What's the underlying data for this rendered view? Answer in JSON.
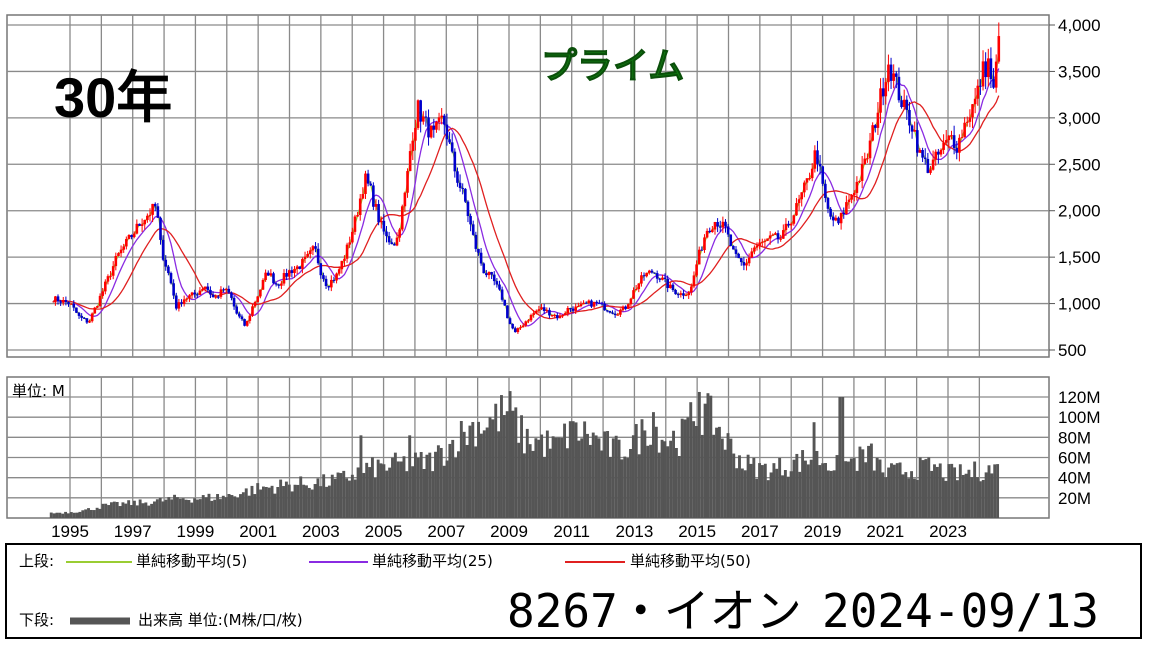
{
  "header": {
    "period_label": "30年",
    "market_label": "プライム"
  },
  "footer": {
    "upper_label": "上段:",
    "lower_label": "下段:",
    "legend_items": [
      {
        "label": "単純移動平均(5)",
        "color": "#9acd32"
      },
      {
        "label": "単純移動平均(25)",
        "color": "#8a2be2"
      },
      {
        "label": "単純移動平均(50)",
        "color": "#e02020"
      }
    ],
    "volume_legend": "出来高 単位:(M株/口/枚)",
    "volume_color": "#555555",
    "ticker": "8267・イオン",
    "date": "2024-09/13"
  },
  "chart_data": [
    {
      "type": "candlestick",
      "title": "",
      "y_ticks": [
        "4,000",
        "3,500",
        "3,000",
        "2,500",
        "2,000",
        "1,500",
        "1,000",
        "500"
      ],
      "ylim": [
        500,
        4000
      ],
      "x_ticks": [
        "1995",
        "1997",
        "1999",
        "2001",
        "2003",
        "2005",
        "2007",
        "2009",
        "2011",
        "2013",
        "2015",
        "2017",
        "2019",
        "2021",
        "2023"
      ],
      "xlim": [
        1994.1,
        2024.8
      ],
      "up_color": "#ff0000",
      "down_color": "#0000cc",
      "grid": true,
      "price_points": [
        [
          1994.5,
          1050
        ],
        [
          1995.0,
          1000
        ],
        [
          1995.3,
          850
        ],
        [
          1995.6,
          800
        ],
        [
          1996.0,
          1100
        ],
        [
          1996.5,
          1500
        ],
        [
          1997.0,
          1750
        ],
        [
          1997.3,
          1900
        ],
        [
          1997.6,
          2000
        ],
        [
          1997.75,
          2050
        ],
        [
          1997.9,
          1600
        ],
        [
          1998.2,
          1250
        ],
        [
          1998.4,
          950
        ],
        [
          1998.6,
          1050
        ],
        [
          1999.0,
          1100
        ],
        [
          1999.3,
          1200
        ],
        [
          1999.6,
          1050
        ],
        [
          1999.9,
          1150
        ],
        [
          2000.1,
          1100
        ],
        [
          2000.3,
          900
        ],
        [
          2000.6,
          750
        ],
        [
          2000.8,
          950
        ],
        [
          2001.0,
          1100
        ],
        [
          2001.3,
          1350
        ],
        [
          2001.6,
          1200
        ],
        [
          2002.0,
          1350
        ],
        [
          2002.3,
          1400
        ],
        [
          2002.6,
          1500
        ],
        [
          2002.8,
          1600
        ],
        [
          2003.0,
          1350
        ],
        [
          2003.2,
          1200
        ],
        [
          2003.5,
          1300
        ],
        [
          2003.8,
          1550
        ],
        [
          2004.1,
          1900
        ],
        [
          2004.4,
          2350
        ],
        [
          2004.6,
          2200
        ],
        [
          2004.9,
          1850
        ],
        [
          2005.1,
          1700
        ],
        [
          2005.4,
          1650
        ],
        [
          2005.7,
          2200
        ],
        [
          2005.9,
          2800
        ],
        [
          2006.1,
          3100
        ],
        [
          2006.3,
          2950
        ],
        [
          2006.6,
          2800
        ],
        [
          2006.9,
          3000
        ],
        [
          2007.1,
          2700
        ],
        [
          2007.3,
          2400
        ],
        [
          2007.6,
          2100
        ],
        [
          2007.9,
          1650
        ],
        [
          2008.2,
          1350
        ],
        [
          2008.5,
          1250
        ],
        [
          2008.8,
          1050
        ],
        [
          2009.0,
          800
        ],
        [
          2009.2,
          680
        ],
        [
          2009.5,
          800
        ],
        [
          2009.8,
          900
        ],
        [
          2010.0,
          950
        ],
        [
          2010.3,
          900
        ],
        [
          2010.6,
          850
        ],
        [
          2010.9,
          950
        ],
        [
          2011.2,
          950
        ],
        [
          2011.5,
          1000
        ],
        [
          2011.8,
          1000
        ],
        [
          2012.1,
          950
        ],
        [
          2012.4,
          900
        ],
        [
          2012.7,
          950
        ],
        [
          2013.0,
          1150
        ],
        [
          2013.3,
          1300
        ],
        [
          2013.6,
          1350
        ],
        [
          2013.9,
          1250
        ],
        [
          2014.2,
          1150
        ],
        [
          2014.5,
          1100
        ],
        [
          2014.8,
          1150
        ],
        [
          2015.0,
          1450
        ],
        [
          2015.3,
          1800
        ],
        [
          2015.6,
          1900
        ],
        [
          2015.9,
          1800
        ],
        [
          2016.2,
          1500
        ],
        [
          2016.5,
          1400
        ],
        [
          2016.8,
          1600
        ],
        [
          2017.1,
          1650
        ],
        [
          2017.4,
          1700
        ],
        [
          2017.7,
          1700
        ],
        [
          2017.9,
          1850
        ],
        [
          2018.2,
          2050
        ],
        [
          2018.5,
          2300
        ],
        [
          2018.8,
          2650
        ],
        [
          2019.0,
          2250
        ],
        [
          2019.2,
          1950
        ],
        [
          2019.5,
          1850
        ],
        [
          2019.8,
          2100
        ],
        [
          2020.1,
          2300
        ],
        [
          2020.4,
          2550
        ],
        [
          2020.7,
          3000
        ],
        [
          2020.9,
          3300
        ],
        [
          2021.1,
          3600
        ],
        [
          2021.3,
          3400
        ],
        [
          2021.6,
          3100
        ],
        [
          2021.9,
          2900
        ],
        [
          2022.1,
          2600
        ],
        [
          2022.4,
          2450
        ],
        [
          2022.6,
          2550
        ],
        [
          2022.9,
          2700
        ],
        [
          2023.1,
          2800
        ],
        [
          2023.3,
          2700
        ],
        [
          2023.6,
          3000
        ],
        [
          2023.9,
          3200
        ],
        [
          2024.1,
          3500
        ],
        [
          2024.3,
          3600
        ],
        [
          2024.45,
          3250
        ],
        [
          2024.6,
          3800
        ]
      ],
      "series": [
        {
          "name": "単純移動平均(5)",
          "color": "#9acd32"
        },
        {
          "name": "単純移動平均(25)",
          "color": "#8a2be2"
        },
        {
          "name": "単純移動平均(50)",
          "color": "#e02020"
        }
      ]
    },
    {
      "type": "bar",
      "title": "",
      "unit_label": "単位: M",
      "y_ticks": [
        "120M",
        "100M",
        "80M",
        "60M",
        "40M",
        "20M"
      ],
      "ylim": [
        0,
        140
      ],
      "xlim": [
        1994.1,
        2024.8
      ],
      "bar_color": "#555555",
      "volume_points": [
        [
          1994.4,
          5
        ],
        [
          1995.0,
          6
        ],
        [
          1995.5,
          8
        ],
        [
          1996.0,
          12
        ],
        [
          1996.5,
          14
        ],
        [
          1997.0,
          15
        ],
        [
          1997.5,
          16
        ],
        [
          1998.0,
          18
        ],
        [
          1998.5,
          20
        ],
        [
          1999.0,
          20
        ],
        [
          1999.5,
          21
        ],
        [
          2000.0,
          22
        ],
        [
          2000.5,
          26
        ],
        [
          2001.0,
          30
        ],
        [
          2001.5,
          32
        ],
        [
          2002.0,
          34
        ],
        [
          2002.5,
          35
        ],
        [
          2003.0,
          36
        ],
        [
          2003.5,
          38
        ],
        [
          2004.0,
          44
        ],
        [
          2004.5,
          50
        ],
        [
          2005.0,
          52
        ],
        [
          2005.5,
          55
        ],
        [
          2006.0,
          56
        ],
        [
          2006.5,
          58
        ],
        [
          2007.0,
          70
        ],
        [
          2007.5,
          85
        ],
        [
          2008.0,
          95
        ],
        [
          2008.5,
          100
        ],
        [
          2009.0,
          110
        ],
        [
          2009.5,
          80
        ],
        [
          2010.0,
          78
        ],
        [
          2010.5,
          72
        ],
        [
          2011.0,
          90
        ],
        [
          2011.5,
          85
        ],
        [
          2012.0,
          75
        ],
        [
          2012.5,
          68
        ],
        [
          2013.0,
          78
        ],
        [
          2013.5,
          95
        ],
        [
          2014.0,
          80
        ],
        [
          2014.5,
          82
        ],
        [
          2015.0,
          110
        ],
        [
          2015.5,
          100
        ],
        [
          2016.0,
          75
        ],
        [
          2016.5,
          55
        ],
        [
          2017.0,
          50
        ],
        [
          2017.5,
          50
        ],
        [
          2018.0,
          55
        ],
        [
          2018.5,
          60
        ],
        [
          2019.0,
          60
        ],
        [
          2019.5,
          52
        ],
        [
          2020.0,
          58
        ],
        [
          2020.5,
          65
        ],
        [
          2021.0,
          45
        ],
        [
          2021.5,
          48
        ],
        [
          2022.0,
          50
        ],
        [
          2022.5,
          52
        ],
        [
          2023.0,
          45
        ],
        [
          2023.5,
          45
        ],
        [
          2024.0,
          48
        ],
        [
          2024.5,
          50
        ]
      ],
      "volume_spikes": [
        [
          2004.3,
          82
        ],
        [
          2005.8,
          82
        ],
        [
          2011.0,
          96
        ],
        [
          2013.6,
          105
        ],
        [
          2015.1,
          125
        ],
        [
          2018.7,
          95
        ],
        [
          2019.6,
          120
        ]
      ]
    }
  ]
}
